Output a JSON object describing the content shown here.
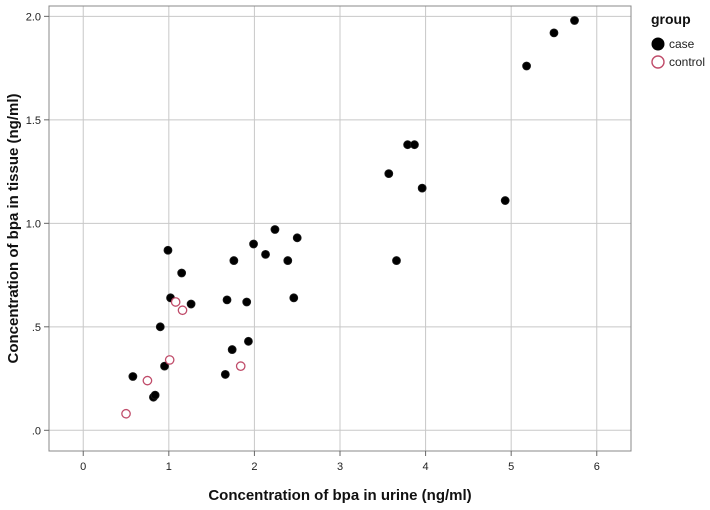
{
  "chart_data": {
    "type": "scatter",
    "xlabel": "Concentration of bpa in urine (ng/ml)",
    "ylabel": "Concentration of bpa in tissue (ng/ml)",
    "xlim": [
      -0.4,
      6.4
    ],
    "ylim": [
      -0.1,
      2.05
    ],
    "x_ticks": [
      0,
      1,
      2,
      3,
      4,
      5,
      6
    ],
    "x_tick_labels": [
      "0",
      "1",
      "2",
      "3",
      "4",
      "5",
      "6"
    ],
    "y_ticks": [
      0,
      0.5,
      1.0,
      1.5,
      2.0
    ],
    "y_tick_labels": [
      ".0",
      ".5",
      "1.0",
      "1.5",
      "2.0"
    ],
    "grid": true,
    "legend": {
      "title": "group",
      "placement": "top-right",
      "entries": [
        {
          "label": "case",
          "color": "#000000",
          "marker": "filled-circle"
        },
        {
          "label": "control",
          "color": "#c04c6a",
          "marker": "open-circle"
        }
      ]
    },
    "series": [
      {
        "name": "case",
        "color": "#000000",
        "points": [
          [
            0.58,
            0.26
          ],
          [
            0.82,
            0.16
          ],
          [
            0.84,
            0.17
          ],
          [
            0.9,
            0.5
          ],
          [
            0.95,
            0.31
          ],
          [
            0.99,
            0.87
          ],
          [
            1.02,
            0.64
          ],
          [
            1.15,
            0.76
          ],
          [
            1.26,
            0.61
          ],
          [
            1.66,
            0.27
          ],
          [
            1.68,
            0.63
          ],
          [
            1.74,
            0.39
          ],
          [
            1.76,
            0.82
          ],
          [
            1.91,
            0.62
          ],
          [
            1.93,
            0.43
          ],
          [
            1.99,
            0.9
          ],
          [
            2.13,
            0.85
          ],
          [
            2.24,
            0.97
          ],
          [
            2.39,
            0.82
          ],
          [
            2.46,
            0.64
          ],
          [
            2.5,
            0.93
          ],
          [
            3.57,
            1.24
          ],
          [
            3.66,
            0.82
          ],
          [
            3.79,
            1.38
          ],
          [
            3.87,
            1.38
          ],
          [
            3.96,
            1.17
          ],
          [
            4.93,
            1.11
          ],
          [
            5.18,
            1.76
          ],
          [
            5.5,
            1.92
          ],
          [
            5.74,
            1.98
          ]
        ]
      },
      {
        "name": "control",
        "color": "#c04c6a",
        "points": [
          [
            0.5,
            0.08
          ],
          [
            0.75,
            0.24
          ],
          [
            1.01,
            0.34
          ],
          [
            1.08,
            0.62
          ],
          [
            1.16,
            0.58
          ],
          [
            1.84,
            0.31
          ]
        ]
      }
    ]
  }
}
